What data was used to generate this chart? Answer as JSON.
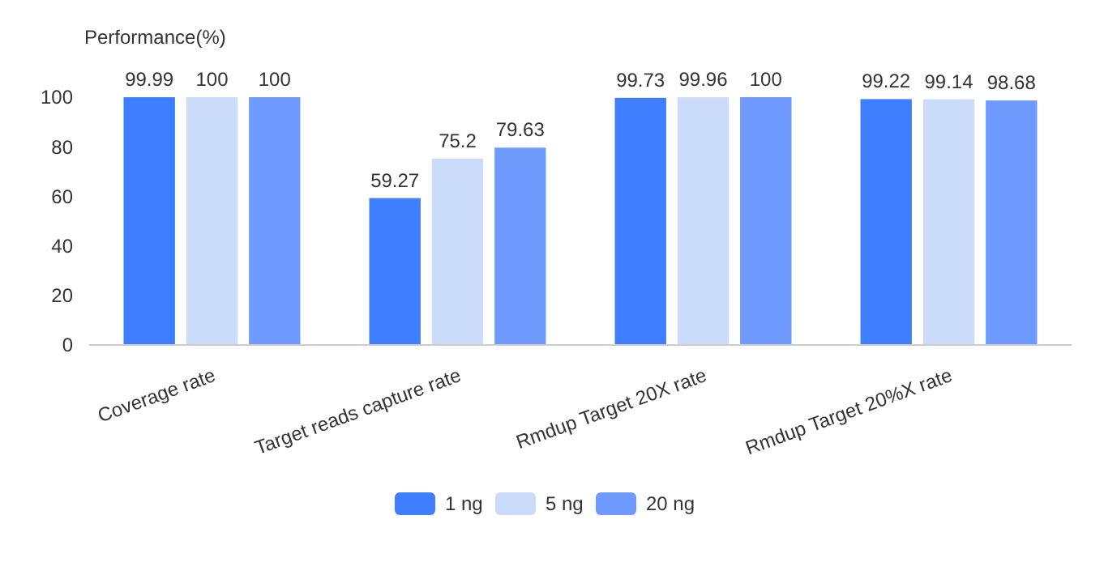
{
  "chart_data": {
    "type": "bar",
    "ylabel": "Performance(%)",
    "categories": [
      "Coverage rate",
      "Target reads capture rate",
      "Rmdup Target 20X rate",
      "Rmdup Target 20%X rate"
    ],
    "series": [
      {
        "name": "1 ng",
        "color": "#3f7efe",
        "values": [
          99.99,
          59.27,
          99.73,
          99.22
        ]
      },
      {
        "name": "5 ng",
        "color": "#cbdbfa",
        "values": [
          100,
          75.2,
          99.96,
          99.14
        ]
      },
      {
        "name": "20 ng",
        "color": "#6e9bfd",
        "values": [
          100,
          79.63,
          100,
          98.68
        ]
      }
    ],
    "ylim": [
      0,
      100
    ],
    "yticks": [
      0,
      20,
      40,
      60,
      80,
      100
    ],
    "data_labels": true,
    "legend": "bottom",
    "grid": false
  }
}
